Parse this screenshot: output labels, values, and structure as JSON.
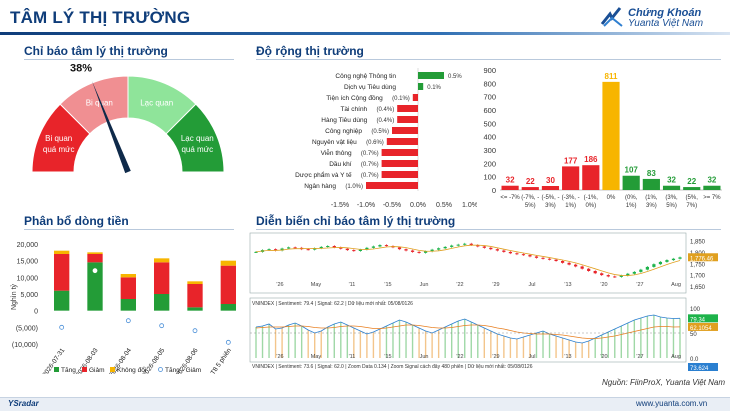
{
  "header": {
    "title": "TÂM LÝ THỊ TRƯỜNG",
    "brand_line1": "Chứng Khoán",
    "brand_line2": "Yuanta Việt Nam"
  },
  "sections": {
    "gauge": "Chỉ báo tâm lý thị trường",
    "breadth": "Độ rộng thị trường",
    "flow": "Phân bổ dòng tiền",
    "history": "Diễn biến chỉ báo tâm lý thị trường"
  },
  "colors": {
    "red": "#e8242a",
    "light_red": "#f08f92",
    "light_green": "#8fe49a",
    "green": "#239c37",
    "yellow": "#f7b500",
    "navy": "#0f3d7a"
  },
  "chart_data": [
    {
      "type": "gauge",
      "value_label": "38%",
      "value": 38,
      "range": [
        0,
        100
      ],
      "segments": [
        "Bi quan quá mức",
        "Bi quan",
        "Lạc quan",
        "Lạc quan quá mức"
      ]
    },
    {
      "type": "bar",
      "orientation": "horizontal",
      "categories": [
        "Công nghệ Thông tin",
        "Dịch vụ Tiêu dùng",
        "Tiện ích Cộng đồng",
        "Tài chính",
        "Hàng Tiêu dùng",
        "Công nghiệp",
        "Nguyên vật liệu",
        "Viễn thông",
        "Dầu khí",
        "Dược phẩm và Y tế",
        "Ngân hàng"
      ],
      "values": [
        0.5,
        0.1,
        -0.1,
        -0.4,
        -0.4,
        -0.5,
        -0.6,
        -0.7,
        -0.7,
        -0.7,
        -1.0
      ],
      "data_labels": [
        "0.5%",
        "0.1%",
        "(0.1%)",
        "(0.4%)",
        "(0.4%)",
        "(0.5%)",
        "(0.6%)",
        "(0.7%)",
        "(0.7%)",
        "(0.7%)",
        "(1.0%)"
      ],
      "xlim": [
        -1.5,
        1.0
      ],
      "xticks": [
        "-1.5%",
        "-1.0%",
        "-0.5%",
        "0.0%",
        "0.5%",
        "1.0%"
      ]
    },
    {
      "type": "bar",
      "categories": [
        "<= -7%",
        "(-7%, -5%)",
        "(-5%, -3%)",
        "(-3%, -1%)",
        "(-1%, 0%)",
        "0%",
        "(0%, 1%)",
        "(1%, 3%)",
        "(3%, 5%)",
        "(5%, 7%)",
        ">= 7%"
      ],
      "category_lines": [
        [
          "<= -7%"
        ],
        [
          "(-7%, -",
          "5%)"
        ],
        [
          "(-5%, -",
          "3%)"
        ],
        [
          "(-3%, -",
          "1%)"
        ],
        [
          "(-1%,",
          "0%)"
        ],
        [
          "0%"
        ],
        [
          "(0%,",
          "1%)"
        ],
        [
          "(1%,",
          "3%)"
        ],
        [
          "(3%,",
          "5%)"
        ],
        [
          "(5%,",
          "7%)"
        ],
        [
          ">= 7%"
        ]
      ],
      "values": [
        32,
        22,
        30,
        177,
        186,
        811,
        107,
        83,
        32,
        22,
        32
      ],
      "ylim": [
        0,
        900
      ],
      "yticks": [
        0,
        100,
        200,
        300,
        400,
        500,
        600,
        700,
        800,
        900
      ]
    },
    {
      "type": "bar",
      "stacked": true,
      "categories": [
        "2026-07-31",
        "2026-08-03",
        "2026-08-04",
        "2026-08-05",
        "2026-08-06",
        "T8 5 phiên"
      ],
      "series": [
        {
          "name": "Tăng",
          "values": [
            6000,
            14500,
            3500,
            5000,
            1000,
            2000
          ]
        },
        {
          "name": "Giảm",
          "values": [
            11000,
            2500,
            6500,
            9500,
            7000,
            11500
          ]
        },
        {
          "name": "Không đổi",
          "values": [
            1000,
            500,
            1000,
            1200,
            800,
            1500
          ]
        }
      ],
      "net": {
        "name": "Tăng - Giảm",
        "values": [
          -5000,
          12000,
          -3000,
          -4500,
          -6000,
          -9500
        ]
      },
      "ylim": [
        -10000,
        20000
      ],
      "yticks": [
        "20,000",
        "15,000",
        "10,000",
        "5,000",
        "0",
        "(5,000)",
        "(10,000)"
      ],
      "ylabel": "Nghìn tỷ"
    },
    {
      "type": "line",
      "title_top": "VNINDEX | Sentiment: 79.4 | Signal: 62.2 | Dữ liệu mới nhất: 05/08/0126",
      "title_bottom": "VNINDEX | Sentiment: 73.6 | Signal: 62.0 | Zoom Data 0.134 | Zoom Signal cách đây 480 phiên | Dữ liệu mới nhất: 05/08/0126",
      "x_ticks_top": [
        "'26",
        "May",
        "'11",
        "'15",
        "Jun",
        "'22",
        "'29",
        "Jul",
        "'13",
        "'20",
        "'27",
        "Aug"
      ],
      "x_ticks_bottom": [
        "'26",
        "May",
        "'11",
        "'15",
        "Jun",
        "'22",
        "'29",
        "Jul",
        "'13",
        "'20",
        "'27",
        "Aug"
      ],
      "y_ticks_top": [
        "1,850",
        "1,800",
        "1,776.46",
        "1,750",
        "1,700",
        "1,650"
      ],
      "y_ticks_bottom": [
        "100",
        "79.34",
        "62.1054",
        "50",
        "0.0",
        "73.624"
      ],
      "price": [
        1800,
        1808,
        1812,
        1806,
        1815,
        1820,
        1818,
        1812,
        1810,
        1816,
        1822,
        1826,
        1820,
        1814,
        1808,
        1804,
        1810,
        1818,
        1824,
        1830,
        1826,
        1820,
        1812,
        1806,
        1800,
        1796,
        1802,
        1810,
        1816,
        1822,
        1828,
        1832,
        1836,
        1830,
        1824,
        1818,
        1812,
        1806,
        1800,
        1794,
        1790,
        1786,
        1780,
        1774,
        1770,
        1766,
        1760,
        1752,
        1744,
        1736,
        1726,
        1716,
        1706,
        1698,
        1692,
        1690,
        1696,
        1704,
        1712,
        1722,
        1734,
        1746,
        1756,
        1764,
        1770,
        1776
      ],
      "sentiment": [
        62,
        64,
        68,
        58,
        60,
        66,
        70,
        64,
        56,
        50,
        54,
        62,
        68,
        72,
        66,
        60,
        54,
        48,
        52,
        58,
        64,
        70,
        76,
        72,
        66,
        60,
        54,
        50,
        56,
        62,
        68,
        74,
        78,
        72,
        66,
        60,
        54,
        48,
        44,
        40,
        38,
        42,
        46,
        50,
        54,
        48,
        44,
        40,
        36,
        32,
        30,
        34,
        40,
        46,
        52,
        58,
        64,
        70,
        76,
        80,
        84,
        86,
        82,
        80,
        79,
        79.4
      ],
      "signal": [
        60,
        61,
        62,
        62,
        62,
        63,
        64,
        64,
        63,
        61,
        60,
        60,
        61,
        63,
        64,
        64,
        63,
        61,
        59,
        59,
        60,
        62,
        64,
        66,
        66,
        65,
        63,
        61,
        60,
        60,
        61,
        63,
        65,
        66,
        66,
        65,
        63,
        60,
        58,
        55,
        52,
        50,
        49,
        48,
        48,
        48,
        47,
        46,
        44,
        42,
        40,
        39,
        39,
        40,
        42,
        44,
        47,
        50,
        53,
        56,
        59,
        62,
        63,
        63,
        62,
        62.2
      ]
    }
  ],
  "footer": {
    "source": "Nguồn: FiinProX, Yuanta Việt Nam",
    "left": "YSradar",
    "right": "www.yuanta.com.vn"
  }
}
